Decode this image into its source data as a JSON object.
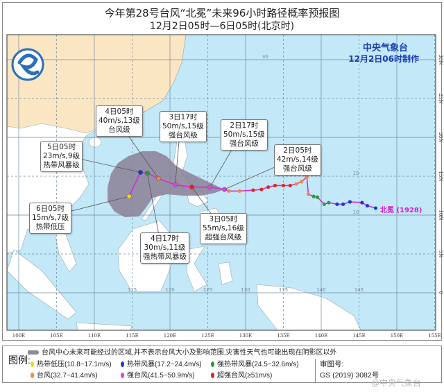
{
  "title": "今年第28号台风“北冕”未来96小时路径概率预报图",
  "subtitle": "12月2日05时—6日05时(北京时)",
  "agency": {
    "name": "中央气象台",
    "made": "12月2日06时制作"
  },
  "typhoon_label": "北冕 (1928)",
  "map": {
    "lon_range": [
      100,
      155
    ],
    "lat_range": [
      -5,
      33
    ],
    "lon_labels": [
      "100E",
      "105E",
      "110E",
      "115E",
      "120E",
      "125E",
      "130E",
      "135E",
      "140E",
      "145E",
      "150E",
      "155E"
    ],
    "lat_labels": [
      "30N",
      "25N",
      "20N",
      "15N",
      "10N",
      "5N",
      "0"
    ],
    "inner_lat_labels": [
      "30",
      "15",
      "10"
    ],
    "inner_lon_labels": [
      "115",
      "120",
      "125",
      "130",
      "135",
      "140",
      "145"
    ],
    "colors": {
      "ocean": "#c3e8f8",
      "land": "#ffffff",
      "china": "#fbe6c4",
      "cone": "#8b7f96",
      "track_line": "#d12fd2"
    }
  },
  "intensity": {
    "TD": {
      "label": "热带低压(10.8~17.1m/s)",
      "color": "#f2d22a"
    },
    "TS": {
      "label": "热带风暴(17.2~24.4m/s)",
      "color": "#1f35d6"
    },
    "STS": {
      "label": "强热带风暴(24.5~32.6m/s)",
      "color": "#2b9a3c"
    },
    "TY": {
      "label": "台风(32.7~41.4m/s)",
      "color": "#f08a3c"
    },
    "STY": {
      "label": "强台风(41.5~50.9m/s)",
      "color": "#e23fe2"
    },
    "SuperTY": {
      "label": "超强台风(≥51m/s)",
      "color": "#e02424"
    }
  },
  "forecast_points": [
    {
      "time": "2日05时",
      "wind": "42m/s,14级",
      "level": "强台风级",
      "lon": 127.2,
      "lat": 13.3,
      "cat": "STY"
    },
    {
      "time": "2日17时",
      "wind": "50m/s,15级",
      "level": "强台风级",
      "lon": 125.3,
      "lat": 13.6,
      "cat": "STY"
    },
    {
      "time": "3日05时",
      "wind": "55m/s,16级",
      "level": "超强台风级",
      "lon": 122.9,
      "lat": 13.6,
      "cat": "SuperTY"
    },
    {
      "time": "3日17时",
      "wind": "50m/s,15级",
      "level": "强台风级",
      "lon": 120.7,
      "lat": 13.9,
      "cat": "STY"
    },
    {
      "time": "4日05时",
      "wind": "40m/s,13级",
      "level": "台风级",
      "lon": 118.5,
      "lat": 14.7,
      "cat": "TY"
    },
    {
      "time": "4日17时",
      "wind": "30m/s,11级",
      "level": "强热带风暴级",
      "lon": 117.0,
      "lat": 15.4,
      "cat": "STS"
    },
    {
      "time": "5日05时",
      "wind": "23m/s,9级",
      "level": "热带风暴级",
      "lon": 116.1,
      "lat": 15.5,
      "cat": "TS"
    },
    {
      "time": "6日05时",
      "wind": "15m/s,7级",
      "level": "热带低压",
      "lon": 114.6,
      "lat": 12.4,
      "cat": "TD"
    }
  ],
  "past_track": [
    {
      "lon": 147.2,
      "lat": 10.9,
      "cat": "TS"
    },
    {
      "lon": 146.1,
      "lat": 11.2,
      "cat": "TS"
    },
    {
      "lon": 145.4,
      "lat": 11.6,
      "cat": "TS"
    },
    {
      "lon": 143.8,
      "lat": 11.7,
      "cat": "TS"
    },
    {
      "lon": 142.9,
      "lat": 11.4,
      "cat": "TS"
    },
    {
      "lon": 142.1,
      "lat": 11.4,
      "cat": "TS"
    },
    {
      "lon": 141.0,
      "lat": 11.6,
      "cat": "STS"
    },
    {
      "lon": 140.4,
      "lat": 11.4,
      "cat": "STS"
    },
    {
      "lon": 139.5,
      "lat": 12.3,
      "cat": "STS"
    },
    {
      "lon": 139.0,
      "lat": 12.4,
      "cat": "STS"
    },
    {
      "lon": 138.3,
      "lat": 12.7,
      "cat": "TY"
    },
    {
      "lon": 138.1,
      "lat": 14.9,
      "cat": "TY"
    },
    {
      "lon": 137.4,
      "lat": 14.3,
      "cat": "TY"
    },
    {
      "lon": 136.7,
      "lat": 14.0,
      "cat": "TY"
    },
    {
      "lon": 135.9,
      "lat": 13.8,
      "cat": "SuperTY"
    },
    {
      "lon": 135.0,
      "lat": 13.8,
      "cat": "SuperTY"
    },
    {
      "lon": 133.9,
      "lat": 13.8,
      "cat": "SuperTY"
    },
    {
      "lon": 133.0,
      "lat": 13.6,
      "cat": "SuperTY"
    },
    {
      "lon": 132.1,
      "lat": 13.3,
      "cat": "SuperTY"
    },
    {
      "lon": 131.0,
      "lat": 13.2,
      "cat": "SuperTY"
    },
    {
      "lon": 129.2,
      "lat": 13.1,
      "cat": "TY"
    },
    {
      "lon": 127.8,
      "lat": 13.1,
      "cat": "TY"
    }
  ],
  "legend": {
    "title": "图例:",
    "cone_desc": "台风中心未来可能经过的区域,并不表示台风大小及影响范围,灾害性天气也可能出现在阴影区以外",
    "approval_label": "审图号:",
    "approval_no": "GS (2019) 3082号"
  },
  "watermark": "@中央气象台"
}
